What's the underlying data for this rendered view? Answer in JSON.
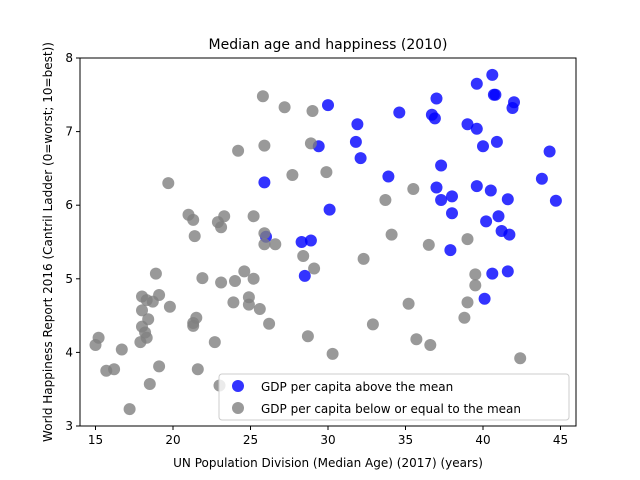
{
  "chart_data": {
    "type": "scatter",
    "title": "Median age and happiness (2010)",
    "xlabel": "UN Population Division (Median Age) (2017) (years)",
    "ylabel": "World Happiness Report 2016 (Cantril Ladder (0=worst; 10=best))",
    "xlim": [
      14,
      46
    ],
    "ylim": [
      3,
      8
    ],
    "xticks": [
      15,
      20,
      25,
      30,
      35,
      40,
      45
    ],
    "yticks": [
      3,
      4,
      5,
      6,
      7,
      8
    ],
    "grid": false,
    "legend_position": "lower-right",
    "series": [
      {
        "name": "GDP per capita above the mean",
        "color": "#0000ff",
        "points": [
          [
            40.6,
            7.77
          ],
          [
            39.6,
            7.65
          ],
          [
            40.7,
            7.5
          ],
          [
            40.8,
            7.5
          ],
          [
            37.0,
            7.45
          ],
          [
            42.0,
            7.4
          ],
          [
            41.9,
            7.32
          ],
          [
            30.0,
            7.36
          ],
          [
            34.6,
            7.26
          ],
          [
            36.7,
            7.23
          ],
          [
            36.9,
            7.18
          ],
          [
            31.9,
            7.1
          ],
          [
            39.0,
            7.1
          ],
          [
            39.6,
            7.04
          ],
          [
            40.9,
            6.86
          ],
          [
            31.8,
            6.86
          ],
          [
            29.4,
            6.8
          ],
          [
            40.0,
            6.8
          ],
          [
            44.3,
            6.73
          ],
          [
            32.1,
            6.64
          ],
          [
            37.3,
            6.54
          ],
          [
            33.9,
            6.39
          ],
          [
            43.8,
            6.36
          ],
          [
            25.9,
            6.31
          ],
          [
            39.6,
            6.26
          ],
          [
            37.0,
            6.24
          ],
          [
            40.5,
            6.2
          ],
          [
            38.0,
            6.12
          ],
          [
            37.3,
            6.07
          ],
          [
            41.6,
            6.08
          ],
          [
            44.7,
            6.06
          ],
          [
            30.1,
            5.94
          ],
          [
            38.0,
            5.89
          ],
          [
            41.0,
            5.85
          ],
          [
            40.2,
            5.78
          ],
          [
            41.2,
            5.65
          ],
          [
            41.7,
            5.6
          ],
          [
            26.0,
            5.57
          ],
          [
            28.9,
            5.52
          ],
          [
            28.3,
            5.5
          ],
          [
            37.9,
            5.39
          ],
          [
            28.5,
            5.04
          ],
          [
            40.6,
            5.07
          ],
          [
            41.6,
            5.1
          ],
          [
            40.1,
            4.73
          ]
        ]
      },
      {
        "name": "GDP per capita below or equal to the mean",
        "color": "#808080",
        "points": [
          [
            25.8,
            7.48
          ],
          [
            27.2,
            7.33
          ],
          [
            29.0,
            7.28
          ],
          [
            25.9,
            6.81
          ],
          [
            28.9,
            6.84
          ],
          [
            24.2,
            6.74
          ],
          [
            29.9,
            6.45
          ],
          [
            27.7,
            6.41
          ],
          [
            19.7,
            6.3
          ],
          [
            35.5,
            6.22
          ],
          [
            33.7,
            6.07
          ],
          [
            21.0,
            5.87
          ],
          [
            23.3,
            5.85
          ],
          [
            25.2,
            5.85
          ],
          [
            21.3,
            5.8
          ],
          [
            22.9,
            5.77
          ],
          [
            23.1,
            5.7
          ],
          [
            25.9,
            5.62
          ],
          [
            34.1,
            5.6
          ],
          [
            21.4,
            5.58
          ],
          [
            39.0,
            5.54
          ],
          [
            26.6,
            5.47
          ],
          [
            25.9,
            5.47
          ],
          [
            36.5,
            5.46
          ],
          [
            28.4,
            5.31
          ],
          [
            32.3,
            5.27
          ],
          [
            29.1,
            5.14
          ],
          [
            24.6,
            5.1
          ],
          [
            39.5,
            5.06
          ],
          [
            18.9,
            5.07
          ],
          [
            21.9,
            5.01
          ],
          [
            25.2,
            5.0
          ],
          [
            24.0,
            4.97
          ],
          [
            23.1,
            4.95
          ],
          [
            39.5,
            4.91
          ],
          [
            18.0,
            4.76
          ],
          [
            19.1,
            4.78
          ],
          [
            18.3,
            4.71
          ],
          [
            18.7,
            4.69
          ],
          [
            23.9,
            4.68
          ],
          [
            24.9,
            4.75
          ],
          [
            24.9,
            4.65
          ],
          [
            35.2,
            4.66
          ],
          [
            39.0,
            4.68
          ],
          [
            19.8,
            4.62
          ],
          [
            25.6,
            4.59
          ],
          [
            18.0,
            4.57
          ],
          [
            21.5,
            4.47
          ],
          [
            18.4,
            4.45
          ],
          [
            21.3,
            4.4
          ],
          [
            38.8,
            4.47
          ],
          [
            26.2,
            4.39
          ],
          [
            32.9,
            4.38
          ],
          [
            18.0,
            4.35
          ],
          [
            21.3,
            4.36
          ],
          [
            18.2,
            4.27
          ],
          [
            18.3,
            4.2
          ],
          [
            28.7,
            4.22
          ],
          [
            15.2,
            4.2
          ],
          [
            17.9,
            4.14
          ],
          [
            22.7,
            4.14
          ],
          [
            35.7,
            4.18
          ],
          [
            15.0,
            4.1
          ],
          [
            36.6,
            4.1
          ],
          [
            16.7,
            4.04
          ],
          [
            30.3,
            3.98
          ],
          [
            42.4,
            3.92
          ],
          [
            19.1,
            3.81
          ],
          [
            15.7,
            3.75
          ],
          [
            21.6,
            3.77
          ],
          [
            16.2,
            3.77
          ],
          [
            18.5,
            3.57
          ],
          [
            23.0,
            3.55
          ],
          [
            17.2,
            3.23
          ]
        ]
      }
    ]
  }
}
